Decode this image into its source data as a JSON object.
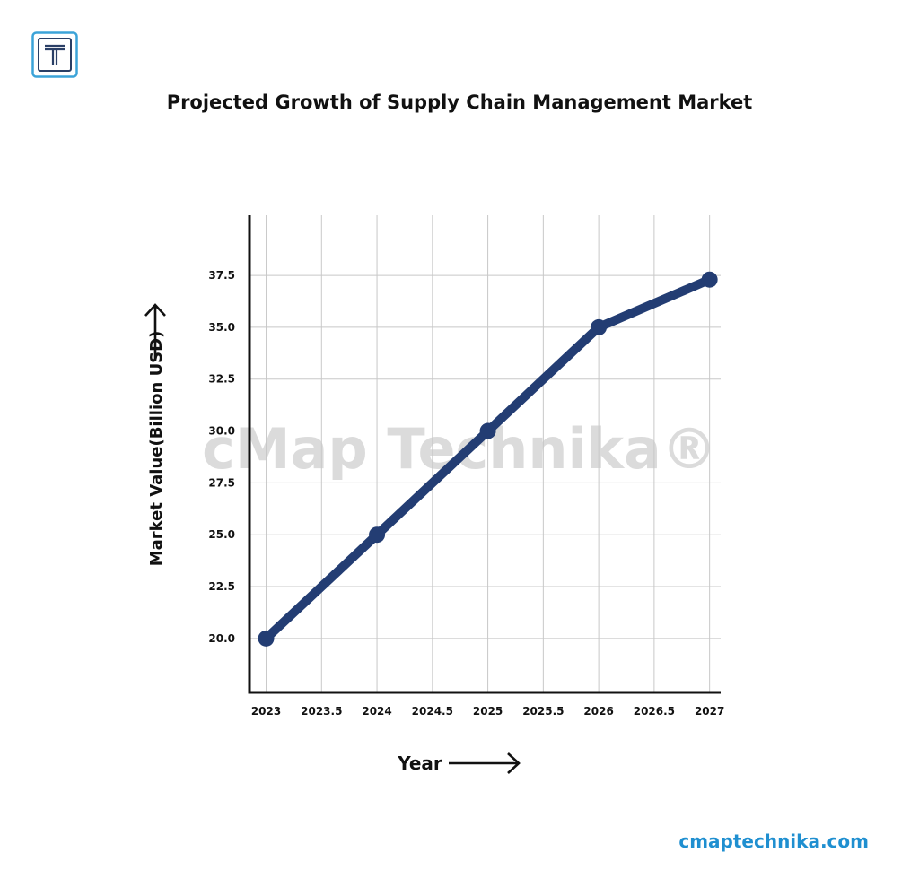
{
  "brand": {
    "logo_icon": "t-logo-icon",
    "accent": "#3ba3d8"
  },
  "watermark": "cMap Technika®",
  "footer": {
    "site": "cmaptechnika.com",
    "color": "#1f8fd0"
  },
  "chart_data": {
    "type": "line",
    "title": "Projected Growth of Supply Chain Management Market",
    "xlabel": "Year",
    "ylabel": "Market Value(Billion USD)",
    "x": [
      2023,
      2024,
      2025,
      2026,
      2027
    ],
    "values": [
      20.0,
      25.0,
      30.0,
      35.0,
      37.3
    ],
    "x_ticks": [
      "2023",
      "2023.5",
      "2024",
      "2024.5",
      "2025",
      "2025.5",
      "2026",
      "2026.5",
      "2027"
    ],
    "y_ticks": [
      "20.0",
      "22.5",
      "25.0",
      "27.5",
      "30.0",
      "32.5",
      "35.0",
      "37.5"
    ],
    "xlim": [
      2022.85,
      2027.1
    ],
    "ylim": [
      17.4,
      40.4
    ],
    "grid": true,
    "line_color": "#233d73"
  }
}
